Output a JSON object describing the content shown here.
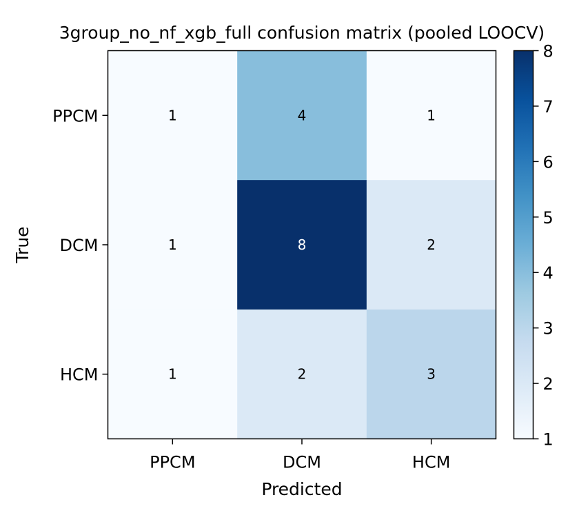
{
  "chart_data": {
    "type": "heatmap",
    "title": "3group_no_nf_xgb_full confusion matrix (pooled LOOCV)",
    "xlabel": "Predicted",
    "ylabel": "True",
    "x_categories": [
      "PPCM",
      "DCM",
      "HCM"
    ],
    "y_categories": [
      "PPCM",
      "DCM",
      "HCM"
    ],
    "matrix": [
      [
        1,
        4,
        1
      ],
      [
        1,
        8,
        2
      ],
      [
        1,
        2,
        3
      ]
    ],
    "value_range": [
      1,
      8
    ],
    "colormap": "Blues",
    "colorbar": {
      "ticks": [
        "1",
        "2",
        "3",
        "4",
        "5",
        "6",
        "7",
        "8"
      ],
      "position": "right"
    },
    "grid": false
  }
}
